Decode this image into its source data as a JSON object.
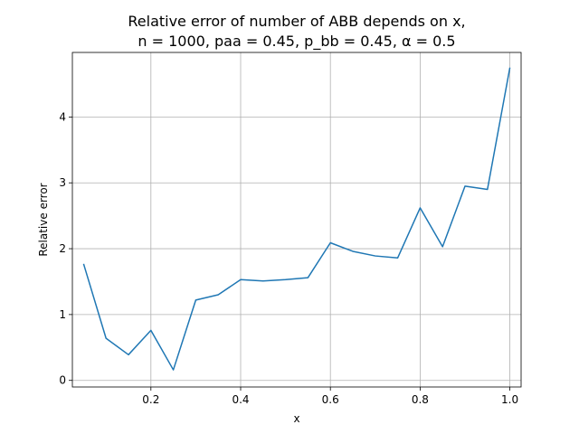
{
  "chart_data": {
    "type": "line",
    "title": "Relative error of number of ABB depends on x,",
    "subtitle": "n = 1000, paa = 0.45, p_bb = 0.45, α = 0.5",
    "xlabel": "x",
    "ylabel": "Relative error",
    "xlim": [
      0.025,
      1.025
    ],
    "ylim": [
      -0.1,
      4.98
    ],
    "xticks": [
      0.2,
      0.4,
      0.6,
      0.8,
      1.0
    ],
    "xtick_labels": [
      "0.2",
      "0.4",
      "0.6",
      "0.8",
      "1.0"
    ],
    "yticks": [
      0,
      1,
      2,
      3,
      4
    ],
    "ytick_labels": [
      "0",
      "1",
      "2",
      "3",
      "4"
    ],
    "grid": true,
    "series": [
      {
        "color": "#1f77b4",
        "x": [
          0.05,
          0.1,
          0.15,
          0.2,
          0.25,
          0.3,
          0.35,
          0.4,
          0.45,
          0.5,
          0.55,
          0.6,
          0.65,
          0.7,
          0.75,
          0.8,
          0.85,
          0.9,
          0.95,
          1.0
        ],
        "y": [
          1.77,
          0.64,
          0.39,
          0.76,
          0.16,
          1.22,
          1.3,
          1.53,
          1.51,
          1.53,
          1.56,
          2.09,
          1.96,
          1.89,
          1.86,
          2.62,
          2.03,
          2.95,
          2.9,
          4.75
        ]
      }
    ]
  }
}
